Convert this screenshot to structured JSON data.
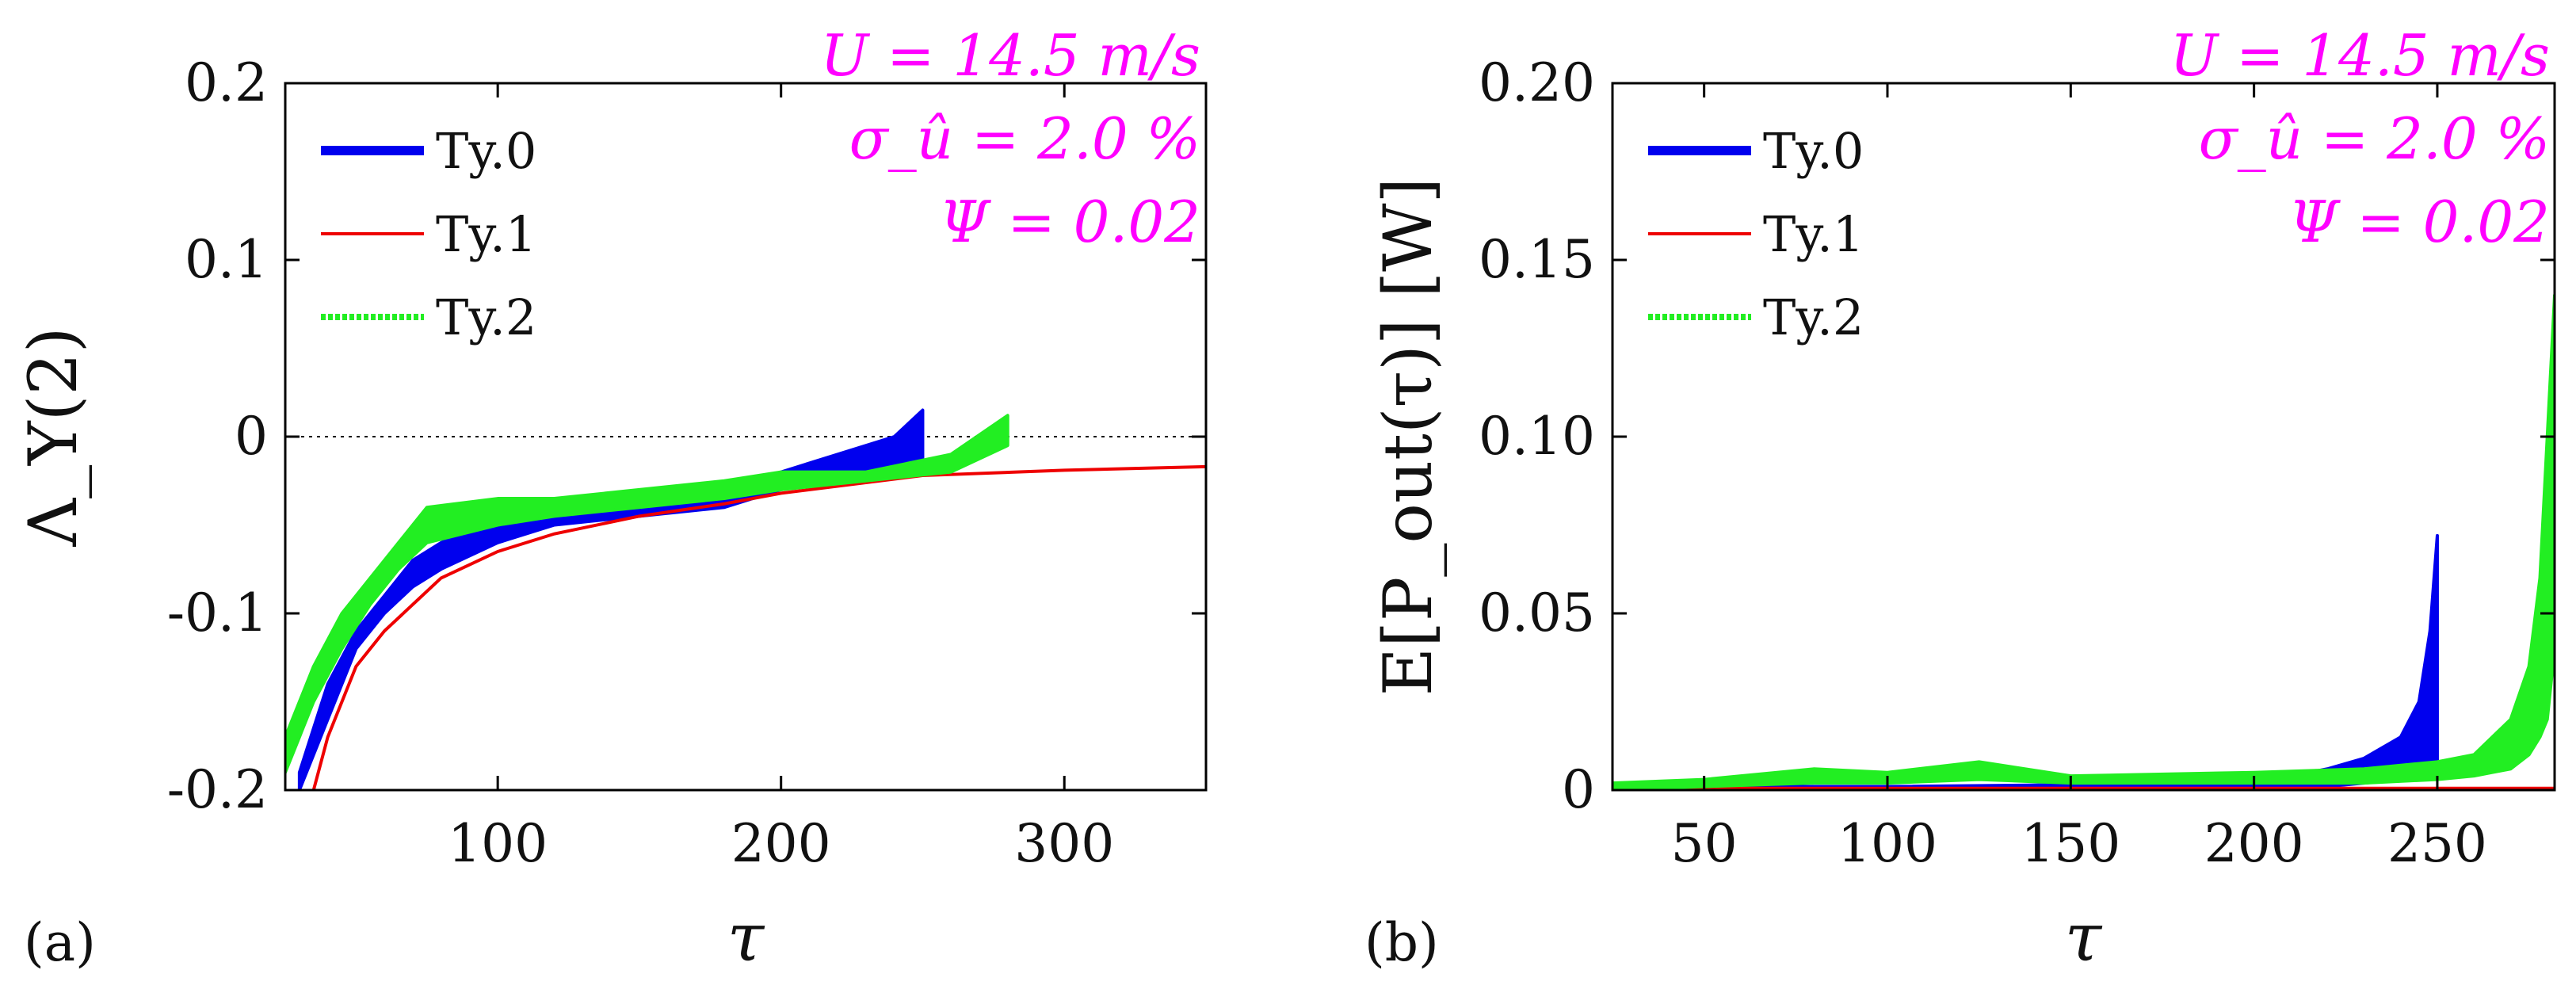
{
  "chart_data": [
    {
      "type": "line",
      "panel_label": "(a)",
      "xlabel": "τ",
      "ylabel": "Λ_Υ(2)",
      "xlim": [
        25,
        350
      ],
      "ylim": [
        -0.2,
        0.2
      ],
      "xticks": [
        100,
        200,
        300
      ],
      "xtick_labels": [
        "100",
        "200",
        "300"
      ],
      "yticks": [
        -0.2,
        -0.1,
        0,
        0.1,
        0.2
      ],
      "ytick_labels": [
        "-0.2",
        "-0.1",
        "0",
        "0.1",
        "0.2"
      ],
      "reference_line_y": 0,
      "annotations": [
        "U = 14.5 m/s",
        "σ_û = 2.0 %",
        "Ψ = 0.02"
      ],
      "legend": [
        "Ty.0",
        "Ty.1",
        "Ty.2"
      ],
      "series": [
        {
          "name": "Ty.0",
          "color": "#0000ee",
          "style": "band",
          "x": [
            30,
            40,
            50,
            60,
            70,
            80,
            100,
            120,
            150,
            180,
            200,
            220,
            240,
            250
          ],
          "upper": [
            -0.19,
            -0.14,
            -0.11,
            -0.09,
            -0.07,
            -0.06,
            -0.045,
            -0.04,
            -0.035,
            -0.03,
            -0.02,
            -0.01,
            0.0,
            0.015
          ],
          "lower": [
            -0.2,
            -0.16,
            -0.12,
            -0.1,
            -0.085,
            -0.075,
            -0.06,
            -0.05,
            -0.045,
            -0.04,
            -0.03,
            -0.025,
            -0.02,
            -0.015
          ]
        },
        {
          "name": "Ty.1",
          "color": "#ee0000",
          "style": "line",
          "x": [
            35,
            40,
            50,
            60,
            70,
            80,
            100,
            120,
            150,
            180,
            200,
            250,
            300,
            350
          ],
          "y": [
            -0.2,
            -0.17,
            -0.13,
            -0.11,
            -0.095,
            -0.08,
            -0.065,
            -0.055,
            -0.045,
            -0.038,
            -0.032,
            -0.022,
            -0.019,
            -0.017
          ]
        },
        {
          "name": "Ty.2",
          "color": "#22ee22",
          "style": "band",
          "x": [
            25,
            35,
            45,
            55,
            65,
            75,
            100,
            120,
            150,
            180,
            200,
            230,
            260,
            280
          ],
          "upper": [
            -0.17,
            -0.13,
            -0.1,
            -0.08,
            -0.06,
            -0.04,
            -0.035,
            -0.035,
            -0.03,
            -0.025,
            -0.02,
            -0.02,
            -0.01,
            0.012
          ],
          "lower": [
            -0.19,
            -0.15,
            -0.12,
            -0.095,
            -0.075,
            -0.06,
            -0.05,
            -0.045,
            -0.04,
            -0.035,
            -0.03,
            -0.025,
            -0.02,
            -0.005
          ]
        }
      ]
    },
    {
      "type": "line",
      "panel_label": "(b)",
      "xlabel": "τ",
      "ylabel": "E[P_out(τ)] [W]",
      "xlim": [
        25,
        282
      ],
      "ylim": [
        0,
        0.2
      ],
      "xticks": [
        50,
        100,
        150,
        200,
        250
      ],
      "xtick_labels": [
        "50",
        "100",
        "150",
        "200",
        "250"
      ],
      "yticks": [
        0,
        0.05,
        0.1,
        0.15,
        0.2
      ],
      "ytick_labels": [
        "0",
        "0.05",
        "0.10",
        "0.15",
        "0.20"
      ],
      "annotations": [
        "U = 14.5 m/s",
        "σ_û = 2.0 %",
        "Ψ = 0.02"
      ],
      "legend": [
        "Ty.0",
        "Ty.1",
        "Ty.2"
      ],
      "series": [
        {
          "name": "Ty.0",
          "color": "#0000ee",
          "style": "band",
          "x": [
            25,
            100,
            200,
            210,
            220,
            230,
            240,
            245,
            248,
            250
          ],
          "upper": [
            0.001,
            0.001,
            0.002,
            0.004,
            0.006,
            0.009,
            0.015,
            0.025,
            0.045,
            0.072
          ],
          "lower": [
            0,
            0,
            0,
            0.001,
            0.001,
            0.002,
            0.003,
            0.004,
            0.005,
            0.006
          ]
        },
        {
          "name": "Ty.1",
          "color": "#ee0000",
          "style": "line",
          "x": [
            25,
            282
          ],
          "y": [
            0.0005,
            0.0005
          ]
        },
        {
          "name": "Ty.2",
          "color": "#22ee22",
          "style": "band",
          "x": [
            25,
            50,
            80,
            100,
            125,
            150,
            200,
            230,
            250,
            260,
            265,
            270,
            275,
            278,
            280,
            282
          ],
          "upper": [
            0.002,
            0.003,
            0.006,
            0.005,
            0.008,
            0.004,
            0.005,
            0.006,
            0.008,
            0.01,
            0.015,
            0.02,
            0.035,
            0.06,
            0.1,
            0.14
          ],
          "lower": [
            0,
            0.001,
            0.002,
            0.002,
            0.003,
            0.002,
            0.002,
            0.002,
            0.003,
            0.004,
            0.005,
            0.006,
            0.01,
            0.015,
            0.02,
            0.04
          ]
        }
      ]
    }
  ]
}
